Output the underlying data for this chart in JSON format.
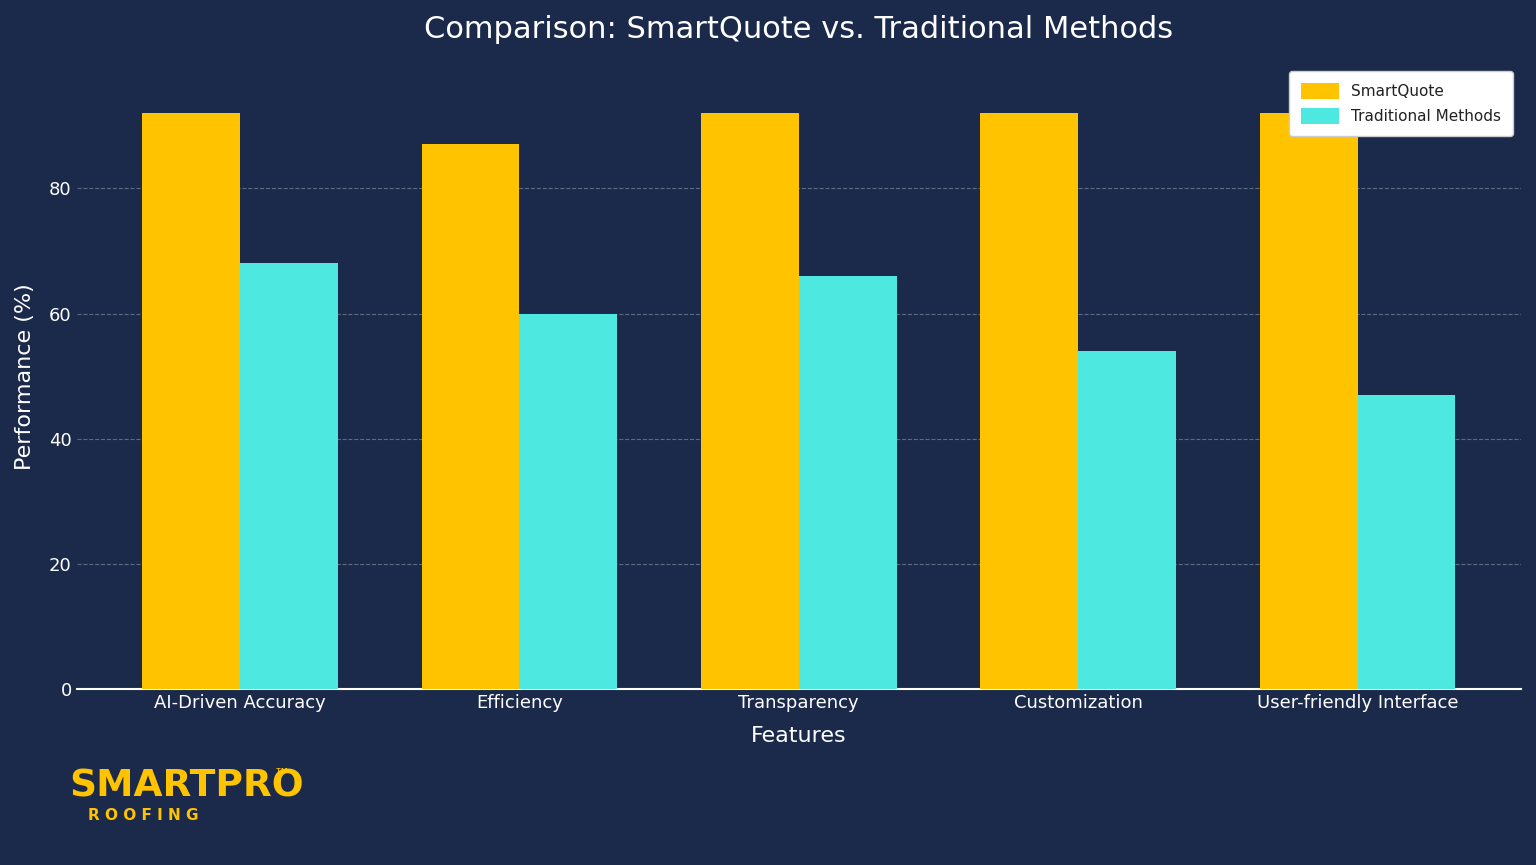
{
  "title": "Comparison: SmartQuote vs. Traditional Methods",
  "categories": [
    "AI-Driven Accuracy",
    "Efficiency",
    "Transparency",
    "Customization",
    "User-friendly Interface"
  ],
  "smartquote_values": [
    92,
    87,
    92,
    92,
    92
  ],
  "traditional_values": [
    68,
    60,
    66,
    54,
    47
  ],
  "smartquote_color": "#FFC300",
  "traditional_color": "#4DE8E0",
  "background_color": "#1B2A4A",
  "text_color": "#FFFFFF",
  "grid_color": "#FFFFFF",
  "xlabel": "Features",
  "ylabel": "Performance (%)",
  "ylim": [
    0,
    100
  ],
  "yticks": [
    0,
    20,
    40,
    60,
    80
  ],
  "legend_labels": [
    "SmartQuote",
    "Traditional Methods"
  ],
  "legend_bg": "#FFFFFF",
  "title_fontsize": 22,
  "axis_label_fontsize": 16,
  "tick_fontsize": 13,
  "legend_fontsize": 11,
  "bar_width": 0.35,
  "smartpro_text": "SMARTPRO",
  "tm_text": "™",
  "roofing_text": "R O O F I N G",
  "smartpro_color": "#FFC300",
  "roofing_color": "#FFC300"
}
